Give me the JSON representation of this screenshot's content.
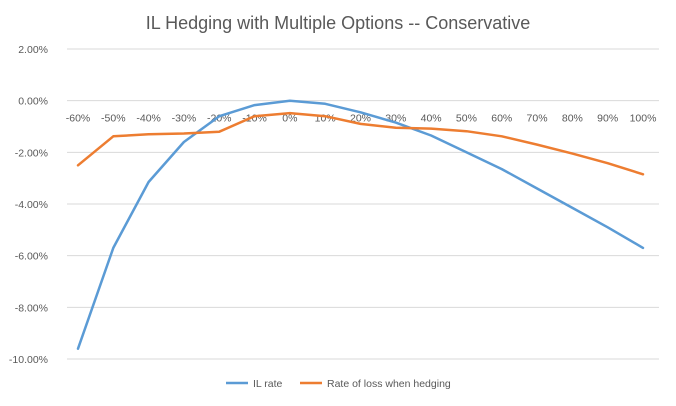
{
  "chart_data": {
    "type": "line",
    "title": "IL Hedging with Multiple Options -- Conservative",
    "xlabel": "",
    "ylabel": "",
    "categories": [
      "-60%",
      "-50%",
      "-40%",
      "-30%",
      "-20%",
      "-10%",
      "0%",
      "10%",
      "20%",
      "30%",
      "40%",
      "50%",
      "60%",
      "70%",
      "80%",
      "90%",
      "100%"
    ],
    "y_ticks": [
      "2.00%",
      "0.00%",
      "-2.00%",
      "-4.00%",
      "-6.00%",
      "-8.00%",
      "-10.00%"
    ],
    "ylim": [
      -10,
      2
    ],
    "grid": true,
    "legend_position": "bottom",
    "series": [
      {
        "name": "IL rate",
        "color": "#5B9BD5",
        "values": [
          -9.6,
          -5.7,
          -3.15,
          -1.6,
          -0.6,
          -0.17,
          0.0,
          -0.12,
          -0.45,
          -0.85,
          -1.35,
          -2.0,
          -2.65,
          -3.4,
          -4.15,
          -4.9,
          -5.7
        ]
      },
      {
        "name": "Rate of loss when hedging",
        "color": "#ED7D31",
        "values": [
          -2.5,
          -1.38,
          -1.3,
          -1.27,
          -1.2,
          -0.6,
          -0.48,
          -0.6,
          -0.9,
          -1.05,
          -1.08,
          -1.18,
          -1.38,
          -1.7,
          -2.05,
          -2.42,
          -2.85
        ]
      }
    ]
  }
}
